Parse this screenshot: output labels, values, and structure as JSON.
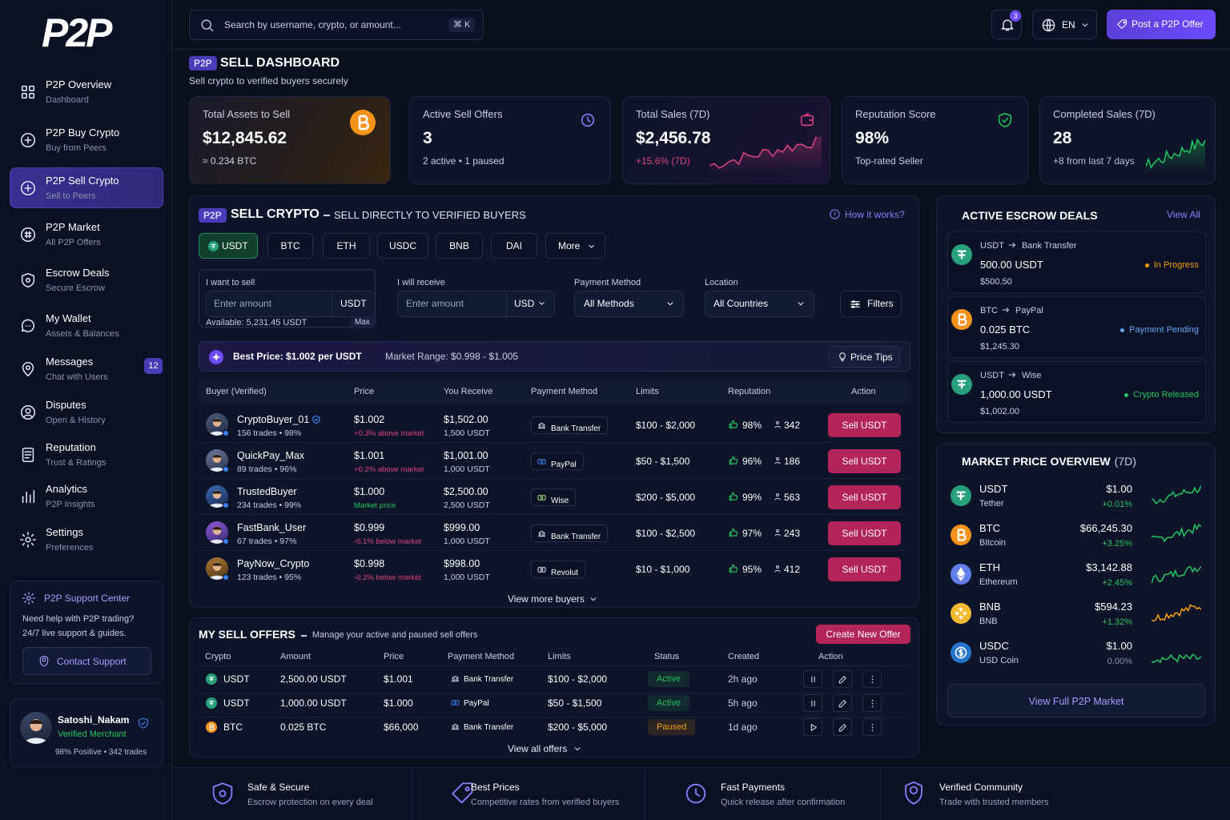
{
  "brand": {
    "logo": "P2P"
  },
  "sidebar": {
    "nav": [
      {
        "title": "P2P Overview",
        "subtitle": "Dashboard"
      },
      {
        "title": "P2P Buy Crypto",
        "subtitle": "Buy from Peers"
      },
      {
        "title": "P2P Sell Crypto",
        "subtitle": "Sell to Peers"
      },
      {
        "title": "P2P Market",
        "subtitle": "All P2P Offers"
      },
      {
        "title": "Escrow Deals",
        "subtitle": "Secure Escrow"
      },
      {
        "title": "My Wallet",
        "subtitle": "Assets & Balances"
      },
      {
        "title": "Messages",
        "subtitle": "Chat with Users"
      },
      {
        "title": "Disputes",
        "subtitle": "Open & History"
      },
      {
        "title": "Reputation",
        "subtitle": "Trust & Ratings"
      },
      {
        "title": "Analytics",
        "subtitle": "P2P Insights"
      },
      {
        "title": "Settings",
        "subtitle": "Preferences"
      }
    ],
    "messages_badge": "12",
    "support": {
      "title": "P2P Support Center",
      "text": "Need help with P2P trading? 24/7 live support & guides.",
      "button": "Contact Support"
    },
    "user": {
      "name": "Satoshi_Nakam",
      "role": "Verified Merchant",
      "stats": "98% Positive • 342 trades"
    }
  },
  "topbar": {
    "search_placeholder": "Search by username, crypto, or amount...",
    "shortcut": "⌘ K",
    "notifications": "3",
    "language": "EN",
    "post_button": "Post a P2P Offer"
  },
  "header": {
    "badge": "P2P",
    "title": "SELL DASHBOARD",
    "subtitle": "Sell crypto to verified buyers securely"
  },
  "stats": [
    {
      "label": "Total Assets to Sell",
      "value": "$12,845.62",
      "sub": "≈ 0.234 BTC"
    },
    {
      "label": "Active Sell Offers",
      "value": "3",
      "sub": "2 active • 1 paused"
    },
    {
      "label": "Total Sales (7D)",
      "value": "$2,456.78",
      "sub": "+15.6% (7D)"
    },
    {
      "label": "Reputation Score",
      "value": "98%",
      "sub": "Top-rated Seller"
    },
    {
      "label": "Completed Sales (7D)",
      "value": "28",
      "sub": "+8 from last 7 days"
    }
  ],
  "sell_crypto": {
    "badge": "P2P",
    "title": "SELL CRYPTO",
    "subtitle": "SELL DIRECTLY TO VERIFIED BUYERS",
    "help": "How it works?",
    "tabs": [
      "USDT",
      "BTC",
      "ETH",
      "USDC",
      "BNB",
      "DAI",
      "More"
    ],
    "form": {
      "sell_label": "I want to sell",
      "sell_placeholder": "Enter amount",
      "sell_currency": "USDT",
      "available": "Available: 5,231.45 USDT",
      "max": "Max",
      "receive_label": "I will receive",
      "receive_placeholder": "Enter amount",
      "receive_currency": "USD",
      "method_label": "Payment Method",
      "method_value": "All Methods",
      "location_label": "Location",
      "location_value": "All Countries",
      "filters": "Filters"
    },
    "best_price": "Best Price: $1.002 per USDT",
    "market_range": "Market Range: $0.998 - $1.005",
    "price_tips": "Price Tips",
    "columns": [
      "Buyer (Verified)",
      "Price",
      "You Receive",
      "Payment Method",
      "Limits",
      "Reputation",
      "Action"
    ],
    "rows": [
      {
        "buyer": "CryptoBuyer_01",
        "verified": true,
        "meta": "156 trades • 98%",
        "price": "$1.002",
        "price_note": "+0.3% above market",
        "note_color": "#e0457b",
        "receive": "$1,502.00",
        "receive_sub": "1,500 USDT",
        "method": "Bank Transfer",
        "limits": "$100 - $2,000",
        "rating": "98%",
        "count": "342",
        "action": "Sell USDT"
      },
      {
        "buyer": "QuickPay_Max",
        "verified": false,
        "meta": "89 trades • 96%",
        "price": "$1.001",
        "price_note": "+0.2% above market",
        "note_color": "#e0457b",
        "receive": "$1,001.00",
        "receive_sub": "1,000 USDT",
        "method": "PayPal",
        "limits": "$50 - $1,500",
        "rating": "96%",
        "count": "186",
        "action": "Sell USDT"
      },
      {
        "buyer": "TrustedBuyer",
        "verified": false,
        "meta": "234 trades • 99%",
        "price": "$1.000",
        "price_note": "Market price",
        "note_color": "#22c55e",
        "receive": "$2,500.00",
        "receive_sub": "2,500 USDT",
        "method": "Wise",
        "limits": "$200 - $5,000",
        "rating": "99%",
        "count": "563",
        "action": "Sell USDT"
      },
      {
        "buyer": "FastBank_User",
        "verified": false,
        "meta": "67 trades • 97%",
        "price": "$0.999",
        "price_note": "-0.1% below market",
        "note_color": "#e0457b",
        "receive": "$999.00",
        "receive_sub": "1,000 USDT",
        "method": "Bank Transfer",
        "limits": "$100 - $2,500",
        "rating": "97%",
        "count": "243",
        "action": "Sell USDT"
      },
      {
        "buyer": "PayNow_Crypto",
        "verified": false,
        "meta": "123 trades • 95%",
        "price": "$0.998",
        "price_note": "-0.2% below market",
        "note_color": "#e0457b",
        "receive": "$998.00",
        "receive_sub": "1,000 USDT",
        "method": "Revolut",
        "limits": "$10 - $1,000",
        "rating": "95%",
        "count": "412",
        "action": "Sell USDT"
      }
    ],
    "more": "View more buyers"
  },
  "escrow": {
    "title": "ACTIVE ESCROW DEALS",
    "view_all": "View All",
    "deals": [
      {
        "asset": "USDT",
        "color": "#26a17b",
        "method": "Bank Transfer",
        "amount": "500.00 USDT",
        "value": "$500.50",
        "status": "In Progress",
        "status_color": "#f59e0b"
      },
      {
        "asset": "BTC",
        "color": "#f7931a",
        "method": "PayPal",
        "amount": "0.025 BTC",
        "value": "$1,245.30",
        "status": "Payment Pending",
        "status_color": "#60a5fa"
      },
      {
        "asset": "USDT",
        "color": "#26a17b",
        "method": "Wise",
        "amount": "1,000.00 USDT",
        "value": "$1,002.00",
        "status": "Crypto Released",
        "status_color": "#22c55e"
      }
    ]
  },
  "market": {
    "title": "MARKET PRICE OVERVIEW",
    "period": "(7D)",
    "coins": [
      {
        "symbol": "USDT",
        "name": "Tether",
        "price": "$1.00",
        "change": "+0.01%",
        "color": "#26a17b",
        "change_color": "#22c55e",
        "line_color": "#22c55e"
      },
      {
        "symbol": "BTC",
        "name": "Bitcoin",
        "price": "$66,245.30",
        "change": "+3.25%",
        "color": "#f7931a",
        "change_color": "#22c55e",
        "line_color": "#22c55e"
      },
      {
        "symbol": "ETH",
        "name": "Ethereum",
        "price": "$3,142.88",
        "change": "+2.45%",
        "color": "#627eea",
        "change_color": "#22c55e",
        "line_color": "#22c55e"
      },
      {
        "symbol": "BNB",
        "name": "BNB",
        "price": "$594.23",
        "change": "+1.32%",
        "color": "#f3ba2f",
        "change_color": "#22c55e",
        "line_color": "#f59e0b"
      },
      {
        "symbol": "USDC",
        "name": "USD Coin",
        "price": "$1.00",
        "change": "0.00%",
        "color": "#2775ca",
        "change_color": "#8a93ad",
        "line_color": "#22c55e"
      }
    ],
    "button": "View Full P2P Market"
  },
  "offers": {
    "title": "MY SELL OFFERS",
    "subtitle": "Manage your active and paused sell offers",
    "create": "Create New Offer",
    "columns": [
      "Crypto",
      "Amount",
      "Price",
      "Payment Method",
      "Limits",
      "Status",
      "Created",
      "Action"
    ],
    "rows": [
      {
        "crypto": "USDT",
        "color": "#26a17b",
        "amount": "2,500.00 USDT",
        "price": "$1.001",
        "method": "Bank Transfer",
        "limits": "$100 - $2,000",
        "status": "Active",
        "status_color": "#22c55e",
        "created": "2h ago"
      },
      {
        "crypto": "USDT",
        "color": "#26a17b",
        "amount": "1,000.00 USDT",
        "price": "$1.000",
        "method": "PayPal",
        "limits": "$50 - $1,500",
        "status": "Active",
        "status_color": "#22c55e",
        "created": "5h ago"
      },
      {
        "crypto": "BTC",
        "color": "#f7931a",
        "amount": "0.025 BTC",
        "price": "$66,000",
        "method": "Bank Transfer",
        "limits": "$200 - $5,000",
        "status": "Paused",
        "status_color": "#f59e0b",
        "created": "1d ago"
      }
    ],
    "more": "View all offers"
  },
  "features": [
    {
      "title": "Safe & Secure",
      "text": "Escrow protection on every deal"
    },
    {
      "title": "Best Prices",
      "text": "Competitive rates from verified buyers"
    },
    {
      "title": "Fast Payments",
      "text": "Quick release after confirmation"
    },
    {
      "title": "Verified Community",
      "text": "Trade with trusted members"
    }
  ]
}
